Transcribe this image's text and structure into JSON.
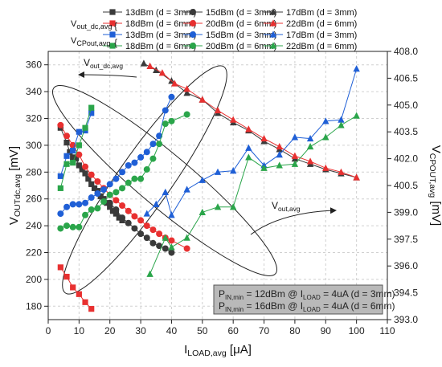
{
  "chart_data": {
    "type": "scatter",
    "grid": true,
    "legend_position": "top",
    "x_axis": {
      "label_main": "I",
      "label_sub": "LOAD,avg",
      "label_unit": " [μA]",
      "range": [
        0,
        110
      ],
      "ticks": [
        0,
        10,
        20,
        30,
        40,
        50,
        60,
        70,
        80,
        90,
        100,
        110
      ]
    },
    "y_left": {
      "label_main": "V",
      "label_sub": "OUTdc,avg",
      "label_unit": " [mV]",
      "range": [
        170,
        370
      ],
      "ticks": [
        180,
        200,
        220,
        240,
        260,
        280,
        300,
        320,
        340,
        360
      ]
    },
    "y_right": {
      "label_main": "V",
      "label_sub": "CPOUT,avg",
      "label_unit": " [mV]",
      "range": [
        393,
        408
      ],
      "ticks": [
        "393.0",
        "394.5",
        "396.0",
        "397.5",
        "399.0",
        "400.5",
        "402.0",
        "403.5",
        "405.0",
        "406.5",
        "408.0"
      ]
    },
    "legend_group_labels": [
      {
        "main": "V",
        "sub": "out_dc,avg",
        "brace": "{"
      },
      {
        "main": "V",
        "sub": "CPout,avg",
        "brace": "{"
      }
    ],
    "series": [
      {
        "name": "13dBm (d = 3mm)",
        "group": "out_dc",
        "marker": "square",
        "color": "#3a3a3a",
        "axis": "left",
        "points": [
          [
            4,
            313
          ],
          [
            6,
            302
          ],
          [
            7,
            295
          ],
          [
            8,
            291
          ],
          [
            9,
            290
          ],
          [
            10,
            285
          ],
          [
            11,
            282
          ],
          [
            12,
            279
          ],
          [
            13,
            275
          ],
          [
            14,
            271
          ],
          [
            15,
            268
          ],
          [
            16,
            266
          ],
          [
            17,
            262
          ],
          [
            18,
            260
          ],
          [
            19,
            257
          ],
          [
            20,
            254
          ],
          [
            21,
            251
          ],
          [
            22,
            249
          ],
          [
            23,
            246
          ],
          [
            24,
            244
          ]
        ]
      },
      {
        "name": "15dBm (d = 3mm)",
        "group": "out_dc",
        "marker": "circle",
        "color": "#3a3a3a",
        "axis": "left",
        "points": [
          [
            20,
            257
          ],
          [
            22,
            252
          ],
          [
            24,
            246
          ],
          [
            26,
            242
          ],
          [
            28,
            238
          ],
          [
            30,
            234
          ],
          [
            32,
            231
          ],
          [
            34,
            227
          ],
          [
            36,
            225
          ],
          [
            38,
            223
          ],
          [
            40,
            220
          ]
        ]
      },
      {
        "name": "17dBm (d = 3mm)",
        "group": "out_dc",
        "marker": "triangle",
        "color": "#3a3a3a",
        "axis": "left",
        "points": [
          [
            31,
            361
          ],
          [
            35,
            356
          ],
          [
            40,
            348
          ],
          [
            45,
            339
          ],
          [
            50,
            334
          ],
          [
            55,
            324
          ],
          [
            60,
            317
          ],
          [
            65,
            311
          ],
          [
            70,
            303
          ],
          [
            75,
            297
          ],
          [
            80,
            290
          ],
          [
            85,
            286
          ],
          [
            90,
            282
          ],
          [
            95,
            279
          ],
          [
            100,
            276
          ]
        ]
      },
      {
        "name": "18dBm (d = 6mm)",
        "group": "out_dc",
        "marker": "square",
        "color": "#e83030",
        "axis": "left",
        "points": [
          [
            4,
            209
          ],
          [
            6,
            202
          ],
          [
            8,
            194
          ],
          [
            10,
            189
          ],
          [
            12,
            183
          ],
          [
            14,
            178
          ]
        ]
      },
      {
        "name": "20dBm (d = 6mm)",
        "group": "out_dc",
        "marker": "circle",
        "color": "#e83030",
        "axis": "left",
        "points": [
          [
            4,
            315
          ],
          [
            6,
            307
          ],
          [
            8,
            300
          ],
          [
            10,
            293
          ],
          [
            12,
            284
          ],
          [
            14,
            278
          ],
          [
            16,
            273
          ],
          [
            18,
            268
          ],
          [
            20,
            263
          ],
          [
            22,
            259
          ],
          [
            24,
            255
          ],
          [
            26,
            251
          ],
          [
            28,
            247
          ],
          [
            30,
            244
          ],
          [
            32,
            240
          ],
          [
            34,
            237
          ],
          [
            36,
            234
          ],
          [
            38,
            231
          ],
          [
            40,
            229
          ],
          [
            45,
            223
          ]
        ]
      },
      {
        "name": "22dBm (d = 6mm)",
        "group": "out_dc",
        "marker": "triangle",
        "color": "#e83030",
        "axis": "left",
        "points": [
          [
            33,
            359
          ],
          [
            37,
            354
          ],
          [
            41,
            346
          ],
          [
            45,
            342
          ],
          [
            50,
            334
          ],
          [
            55,
            326
          ],
          [
            60,
            319
          ],
          [
            65,
            312
          ],
          [
            70,
            305
          ],
          [
            75,
            299
          ],
          [
            80,
            292
          ],
          [
            85,
            288
          ],
          [
            90,
            283
          ],
          [
            95,
            280
          ],
          [
            100,
            276
          ]
        ]
      },
      {
        "name": "13dBm (d = 3mm)",
        "group": "cpout",
        "marker": "square",
        "color": "#1f5fd6",
        "axis": "left",
        "points": [
          [
            4,
            277
          ],
          [
            6,
            292
          ],
          [
            8,
            296
          ],
          [
            10,
            310
          ],
          [
            12,
            311
          ],
          [
            14,
            324
          ]
        ]
      },
      {
        "name": "15dBm (d = 3mm)",
        "group": "cpout",
        "marker": "circle",
        "color": "#1f5fd6",
        "axis": "left",
        "points": [
          [
            4,
            249
          ],
          [
            6,
            254
          ],
          [
            8,
            256
          ],
          [
            10,
            256
          ],
          [
            12,
            257
          ],
          [
            14,
            261
          ],
          [
            16,
            264
          ],
          [
            18,
            267
          ],
          [
            20,
            271
          ],
          [
            22,
            275
          ],
          [
            24,
            280
          ],
          [
            26,
            285
          ],
          [
            28,
            287
          ],
          [
            30,
            291
          ],
          [
            32,
            295
          ],
          [
            34,
            301
          ],
          [
            36,
            307
          ],
          [
            38,
            326
          ],
          [
            40,
            336
          ]
        ]
      },
      {
        "name": "17dBm (d = 3mm)",
        "group": "cpout",
        "marker": "triangle",
        "color": "#1f5fd6",
        "axis": "left",
        "points": [
          [
            32,
            249
          ],
          [
            35,
            256
          ],
          [
            38,
            265
          ],
          [
            40,
            248
          ],
          [
            45,
            267
          ],
          [
            50,
            274
          ],
          [
            55,
            280
          ],
          [
            60,
            281
          ],
          [
            65,
            298
          ],
          [
            70,
            285
          ],
          [
            75,
            293
          ],
          [
            80,
            306
          ],
          [
            85,
            305
          ],
          [
            90,
            318
          ],
          [
            95,
            319
          ],
          [
            100,
            357
          ]
        ]
      },
      {
        "name": "18dBm (d = 6mm)",
        "group": "cpout",
        "marker": "square",
        "color": "#2aa54a",
        "axis": "left",
        "points": [
          [
            4,
            268
          ],
          [
            6,
            286
          ],
          [
            8,
            287
          ],
          [
            10,
            300
          ],
          [
            12,
            313
          ],
          [
            14,
            328
          ]
        ]
      },
      {
        "name": "20dBm (d = 6mm)",
        "group": "cpout",
        "marker": "circle",
        "color": "#2aa54a",
        "axis": "left",
        "points": [
          [
            4,
            238
          ],
          [
            6,
            240
          ],
          [
            8,
            239
          ],
          [
            10,
            239
          ],
          [
            12,
            248
          ],
          [
            14,
            252
          ],
          [
            16,
            253
          ],
          [
            18,
            258
          ],
          [
            20,
            263
          ],
          [
            22,
            265
          ],
          [
            24,
            268
          ],
          [
            26,
            272
          ],
          [
            28,
            275
          ],
          [
            30,
            275
          ],
          [
            32,
            282
          ],
          [
            34,
            290
          ],
          [
            36,
            301
          ],
          [
            38,
            316
          ],
          [
            40,
            318
          ],
          [
            45,
            323
          ]
        ]
      },
      {
        "name": "22dBm (d = 6mm)",
        "group": "cpout",
        "marker": "triangle",
        "color": "#2aa54a",
        "axis": "left",
        "points": [
          [
            33,
            204
          ],
          [
            38,
            231
          ],
          [
            40,
            224
          ],
          [
            45,
            231
          ],
          [
            50,
            250
          ],
          [
            55,
            254
          ],
          [
            60,
            254
          ],
          [
            65,
            291
          ],
          [
            70,
            283
          ],
          [
            75,
            285
          ],
          [
            80,
            286
          ],
          [
            85,
            299
          ],
          [
            90,
            306
          ],
          [
            95,
            315
          ],
          [
            100,
            322
          ]
        ]
      }
    ],
    "annotations": {
      "vout_dc": {
        "main": "V",
        "sub": "out_dc,avg"
      },
      "vout": {
        "main": "V",
        "sub": "out,avg"
      },
      "info_lines": [
        {
          "p": "P",
          "psub": "IN,min",
          "mid": " = 12dBm @ I",
          "isub": "LOAD",
          "end": " = 4uA (d = 3mm)"
        },
        {
          "p": "P",
          "psub": "IN,min",
          "mid": " = 16dBm @ I",
          "isub": "LOAD",
          "end": " = 4uA (d = 6mm)"
        }
      ]
    }
  }
}
